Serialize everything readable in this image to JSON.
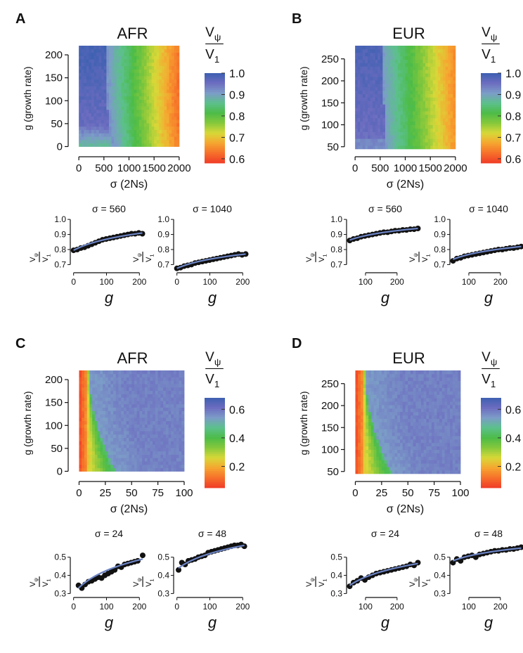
{
  "panels": [
    {
      "letter": "A",
      "population": "AFR",
      "heatmap": {
        "xlabel": "σ (2Ns)",
        "ylabel": "g (growth rate)",
        "xticks": [
          0,
          500,
          1000,
          1500,
          2000
        ],
        "xtick_labels": [
          "0",
          "500",
          "1000",
          "1500",
          "2000"
        ],
        "yticks": [
          0,
          50,
          100,
          150,
          200
        ],
        "xlim": [
          -100,
          2100
        ],
        "ylim": [
          -10,
          220
        ],
        "xrange": [
          0,
          2000
        ],
        "yrange": [
          0,
          220
        ],
        "value_range": [
          0.58,
          1.0
        ],
        "pattern": "growthbump"
      },
      "colorbar": {
        "label_top": "V",
        "label_top_sub": "ψ",
        "label_bottom": "V",
        "label_bottom_sub": "1",
        "min": 0.58,
        "max": 1.0,
        "ticks": [
          1.0,
          0.9,
          0.8,
          0.7,
          0.6
        ],
        "tick_labels": [
          "1.0",
          "0.9",
          "0.8",
          "0.7",
          "0.6"
        ]
      },
      "small": [
        {
          "title": "σ = 560",
          "xlabel": "g",
          "ylabel_top": "V",
          "ylabel_top_sub": "ψ",
          "ylabel_bottom": "V",
          "ylabel_bottom_sub": "1",
          "xticks": [
            0,
            100,
            200
          ],
          "xlim": [
            -10,
            225
          ],
          "yticks": [
            0.7,
            0.8,
            0.9,
            1.0
          ],
          "ytick_labels": [
            "0.7",
            "0.8",
            "0.9",
            "1.0"
          ],
          "ylim": [
            0.66,
            1.01
          ],
          "x": [
            0,
            11,
            22,
            33,
            44,
            55,
            66,
            77,
            88,
            99,
            110,
            121,
            132,
            143,
            154,
            165,
            176,
            187,
            198,
            209
          ],
          "y": [
            0.795,
            0.8,
            0.81,
            0.815,
            0.825,
            0.835,
            0.845,
            0.855,
            0.865,
            0.87,
            0.875,
            0.88,
            0.885,
            0.89,
            0.895,
            0.9,
            0.905,
            0.905,
            0.91,
            0.905
          ],
          "fit": [
            0.795,
            0.91
          ]
        },
        {
          "title": "σ = 1040",
          "xlabel": "g",
          "ylabel_top": "V",
          "ylabel_top_sub": "ψ",
          "ylabel_bottom": "V",
          "ylabel_bottom_sub": "1",
          "xticks": [
            0,
            100,
            200
          ],
          "xlim": [
            -10,
            225
          ],
          "yticks": [
            0.7,
            0.8,
            0.9,
            1.0
          ],
          "ytick_labels": [
            "0.7",
            "0.8",
            "0.9",
            "1.0"
          ],
          "ylim": [
            0.66,
            1.01
          ],
          "x": [
            0,
            11,
            22,
            33,
            44,
            55,
            66,
            77,
            88,
            99,
            110,
            121,
            132,
            143,
            154,
            165,
            176,
            187,
            198,
            209
          ],
          "y": [
            0.675,
            0.68,
            0.69,
            0.695,
            0.7,
            0.71,
            0.715,
            0.72,
            0.725,
            0.73,
            0.735,
            0.74,
            0.745,
            0.75,
            0.755,
            0.76,
            0.765,
            0.77,
            0.765,
            0.77
          ],
          "fit": [
            0.675,
            0.77
          ]
        }
      ]
    },
    {
      "letter": "B",
      "population": "EUR",
      "heatmap": {
        "xlabel": "σ (2Ns)",
        "ylabel": "g (growth rate)",
        "xticks": [
          0,
          500,
          1000,
          1500,
          2000
        ],
        "xtick_labels": [
          "0",
          "500",
          "1000",
          "1500",
          "2000"
        ],
        "yticks": [
          50,
          100,
          150,
          200,
          250
        ],
        "xlim": [
          -100,
          2100
        ],
        "ylim": [
          40,
          280
        ],
        "xrange": [
          0,
          2000
        ],
        "yrange": [
          45,
          280
        ],
        "value_range": [
          0.58,
          1.0
        ],
        "pattern": "flat"
      },
      "colorbar": {
        "label_top": "V",
        "label_top_sub": "ψ",
        "label_bottom": "V",
        "label_bottom_sub": "1",
        "min": 0.58,
        "max": 1.0,
        "ticks": [
          1.0,
          0.9,
          0.8,
          0.7,
          0.6
        ],
        "tick_labels": [
          "1.0",
          "0.9",
          "0.8",
          "0.7",
          "0.6"
        ]
      },
      "small": [
        {
          "title": "σ = 560",
          "xlabel": "g",
          "ylabel_top": "V",
          "ylabel_top_sub": "ψ",
          "ylabel_bottom": "V",
          "ylabel_bottom_sub": "1",
          "xticks": [
            100,
            200
          ],
          "xlim": [
            40,
            285
          ],
          "yticks": [
            0.7,
            0.8,
            0.9,
            1.0
          ],
          "ytick_labels": [
            "0.7",
            "0.8",
            "0.9",
            "1.0"
          ],
          "ylim": [
            0.66,
            1.01
          ],
          "x": [
            50,
            62,
            74,
            86,
            98,
            110,
            122,
            134,
            146,
            158,
            170,
            182,
            194,
            206,
            218,
            230,
            242,
            254,
            266
          ],
          "y": [
            0.86,
            0.87,
            0.875,
            0.885,
            0.89,
            0.895,
            0.9,
            0.905,
            0.91,
            0.915,
            0.915,
            0.92,
            0.925,
            0.925,
            0.93,
            0.93,
            0.935,
            0.935,
            0.94
          ],
          "fit": [
            0.863,
            0.94
          ]
        },
        {
          "title": "σ = 1040",
          "xlabel": "g",
          "ylabel_top": "V",
          "ylabel_top_sub": "ψ",
          "ylabel_bottom": "V",
          "ylabel_bottom_sub": "1",
          "xticks": [
            100,
            200
          ],
          "xlim": [
            40,
            285
          ],
          "yticks": [
            0.7,
            0.8,
            0.9,
            1.0
          ],
          "ytick_labels": [
            "0.7",
            "0.8",
            "0.9",
            "1.0"
          ],
          "ylim": [
            0.66,
            1.01
          ],
          "x": [
            50,
            62,
            74,
            86,
            98,
            110,
            122,
            134,
            146,
            158,
            170,
            182,
            194,
            206,
            218,
            230,
            242,
            254,
            266
          ],
          "y": [
            0.725,
            0.74,
            0.745,
            0.755,
            0.76,
            0.765,
            0.77,
            0.775,
            0.78,
            0.785,
            0.79,
            0.795,
            0.8,
            0.8,
            0.805,
            0.81,
            0.81,
            0.815,
            0.82
          ],
          "fit": [
            0.735,
            0.82
          ]
        }
      ]
    },
    {
      "letter": "C",
      "population": "AFR",
      "heatmap": {
        "xlabel": "σ (2Ns)",
        "ylabel": "g (growth rate)",
        "xticks": [
          0,
          25,
          50,
          75,
          100
        ],
        "xtick_labels": [
          "0",
          "25",
          "50",
          "75",
          "100"
        ],
        "yticks": [
          0,
          50,
          100,
          150,
          200
        ],
        "xlim": [
          -5,
          100
        ],
        "ylim": [
          -10,
          220
        ],
        "xrange": [
          0,
          100
        ],
        "yrange": [
          0,
          220
        ],
        "value_range": [
          0.0,
          0.7
        ],
        "pattern": "lowsigma"
      },
      "colorbar": {
        "label_top": "V",
        "label_top_sub": "ψ",
        "label_bottom": "V",
        "label_bottom_sub": "1",
        "min": 0.05,
        "max": 0.68,
        "ticks": [
          0.6,
          0.4,
          0.2
        ],
        "tick_labels": [
          "0.6",
          "0.4",
          "0.2"
        ]
      },
      "small": [
        {
          "title": "σ = 24",
          "xlabel": "g",
          "ylabel_top": "V",
          "ylabel_top_sub": "ψ",
          "ylabel_bottom": "V",
          "ylabel_bottom_sub": "1",
          "xticks": [
            0,
            100,
            200
          ],
          "xlim": [
            -10,
            225
          ],
          "yticks": [
            0.3,
            0.4,
            0.5
          ],
          "ytick_labels": [
            "0.3",
            "0.4",
            "0.5"
          ],
          "ylim": [
            0.29,
            0.58
          ],
          "x": [
            15,
            25,
            35,
            45,
            55,
            65,
            75,
            85,
            95,
            105,
            115,
            125,
            135,
            145,
            155,
            165,
            175,
            185,
            195,
            210
          ],
          "y": [
            0.345,
            0.33,
            0.35,
            0.365,
            0.37,
            0.38,
            0.39,
            0.385,
            0.4,
            0.41,
            0.42,
            0.43,
            0.45,
            0.445,
            0.46,
            0.465,
            0.47,
            0.475,
            0.48,
            0.51
          ],
          "fit": [
            0.33,
            0.49
          ]
        },
        {
          "title": "σ = 48",
          "xlabel": "g",
          "ylabel_top": "V",
          "ylabel_top_sub": "ψ",
          "ylabel_bottom": "V",
          "ylabel_bottom_sub": "1",
          "xticks": [
            0,
            100,
            200
          ],
          "xlim": [
            -10,
            225
          ],
          "yticks": [
            0.3,
            0.4,
            0.5
          ],
          "ytick_labels": [
            "0.3",
            "0.4",
            "0.5"
          ],
          "ylim": [
            0.29,
            0.58
          ],
          "x": [
            5,
            15,
            25,
            35,
            45,
            55,
            65,
            75,
            85,
            95,
            105,
            115,
            125,
            135,
            145,
            155,
            165,
            175,
            185,
            195,
            205
          ],
          "y": [
            0.43,
            0.47,
            0.46,
            0.48,
            0.485,
            0.49,
            0.5,
            0.505,
            0.51,
            0.525,
            0.53,
            0.535,
            0.54,
            0.545,
            0.55,
            0.555,
            0.56,
            0.565,
            0.565,
            0.57,
            0.56
          ],
          "fit": [
            0.44,
            0.565
          ]
        }
      ]
    },
    {
      "letter": "D",
      "population": "EUR",
      "heatmap": {
        "xlabel": "σ (2Ns)",
        "ylabel": "g (growth rate)",
        "xticks": [
          0,
          25,
          50,
          75,
          100
        ],
        "xtick_labels": [
          "0",
          "25",
          "50",
          "75",
          "100"
        ],
        "yticks": [
          50,
          100,
          150,
          200,
          250
        ],
        "xlim": [
          -5,
          100
        ],
        "ylim": [
          40,
          280
        ],
        "xrange": [
          0,
          100
        ],
        "yrange": [
          45,
          280
        ],
        "value_range": [
          0.0,
          0.7
        ],
        "pattern": "lowsigma"
      },
      "colorbar": {
        "label_top": "V",
        "label_top_sub": "ψ",
        "label_bottom": "V",
        "label_bottom_sub": "1",
        "min": 0.05,
        "max": 0.68,
        "ticks": [
          0.6,
          0.4,
          0.2
        ],
        "tick_labels": [
          "0.6",
          "0.4",
          "0.2"
        ]
      },
      "small": [
        {
          "title": "σ = 24",
          "xlabel": "g",
          "ylabel_top": "V",
          "ylabel_top_sub": "ψ",
          "ylabel_bottom": "V",
          "ylabel_bottom_sub": "1",
          "xticks": [
            100,
            200
          ],
          "xlim": [
            40,
            285
          ],
          "yticks": [
            0.3,
            0.4,
            0.5
          ],
          "ytick_labels": [
            "0.3",
            "0.4",
            "0.5"
          ],
          "ylim": [
            0.29,
            0.58
          ],
          "x": [
            50,
            62,
            74,
            86,
            98,
            110,
            122,
            134,
            146,
            158,
            170,
            182,
            194,
            206,
            218,
            230,
            242,
            254,
            266
          ],
          "y": [
            0.34,
            0.36,
            0.37,
            0.385,
            0.375,
            0.39,
            0.4,
            0.41,
            0.415,
            0.42,
            0.425,
            0.43,
            0.435,
            0.44,
            0.445,
            0.45,
            0.46,
            0.455,
            0.47
          ],
          "fit": [
            0.345,
            0.465
          ]
        },
        {
          "title": "σ = 48",
          "xlabel": "g",
          "ylabel_top": "V",
          "ylabel_top_sub": "ψ",
          "ylabel_bottom": "V",
          "ylabel_bottom_sub": "1",
          "xticks": [
            100,
            200
          ],
          "xlim": [
            40,
            285
          ],
          "yticks": [
            0.3,
            0.4,
            0.5
          ],
          "ytick_labels": [
            "0.3",
            "0.4",
            "0.5"
          ],
          "ylim": [
            0.29,
            0.58
          ],
          "x": [
            50,
            62,
            74,
            86,
            98,
            110,
            122,
            134,
            146,
            158,
            170,
            182,
            194,
            206,
            218,
            230,
            242,
            254,
            266
          ],
          "y": [
            0.47,
            0.49,
            0.48,
            0.5,
            0.505,
            0.51,
            0.5,
            0.515,
            0.52,
            0.525,
            0.53,
            0.535,
            0.535,
            0.54,
            0.54,
            0.545,
            0.545,
            0.55,
            0.555
          ],
          "fit": [
            0.48,
            0.55
          ]
        }
      ]
    }
  ],
  "colors": {
    "scale": [
      "#f03c28",
      "#f6702a",
      "#f6a630",
      "#d8d838",
      "#86c83c",
      "#4cbc48",
      "#5cc08c",
      "#7c9cc8",
      "#6c6cc0",
      "#3c60b0"
    ],
    "fit_line": "#6c84c4",
    "points": "#111111"
  }
}
